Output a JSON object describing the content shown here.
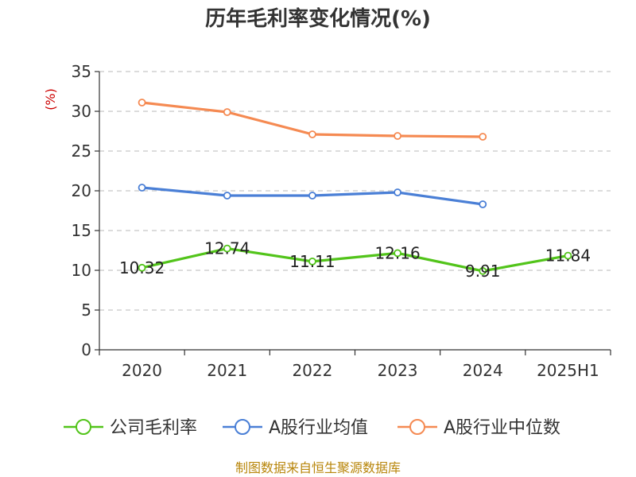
{
  "chart_data": {
    "type": "line",
    "title": "历年毛利率变化情况(%)",
    "ylabel": "(%)",
    "xlabel": "",
    "categories": [
      "2020",
      "2021",
      "2022",
      "2023",
      "2024",
      "2025H1"
    ],
    "ylim": [
      0,
      35
    ],
    "yticks": [
      0,
      5,
      10,
      15,
      20,
      25,
      30,
      35
    ],
    "grid": true,
    "legend_position": "bottom",
    "series": [
      {
        "name": "公司毛利率",
        "color": "#52c41a",
        "values": [
          10.32,
          12.74,
          11.11,
          12.16,
          9.91,
          11.84
        ],
        "labels": [
          "10.32",
          "12.74",
          "11.11",
          "12.16",
          "9.91",
          "11.84"
        ]
      },
      {
        "name": "A股行业均值",
        "color": "#4a7fd6",
        "values": [
          20.4,
          19.4,
          19.4,
          19.8,
          18.3,
          null
        ]
      },
      {
        "name": "A股行业中位数",
        "color": "#f58a52",
        "values": [
          31.1,
          29.9,
          27.1,
          26.9,
          26.8,
          null
        ]
      }
    ]
  },
  "footer": {
    "source": "制图数据来自恒生聚源数据库"
  }
}
